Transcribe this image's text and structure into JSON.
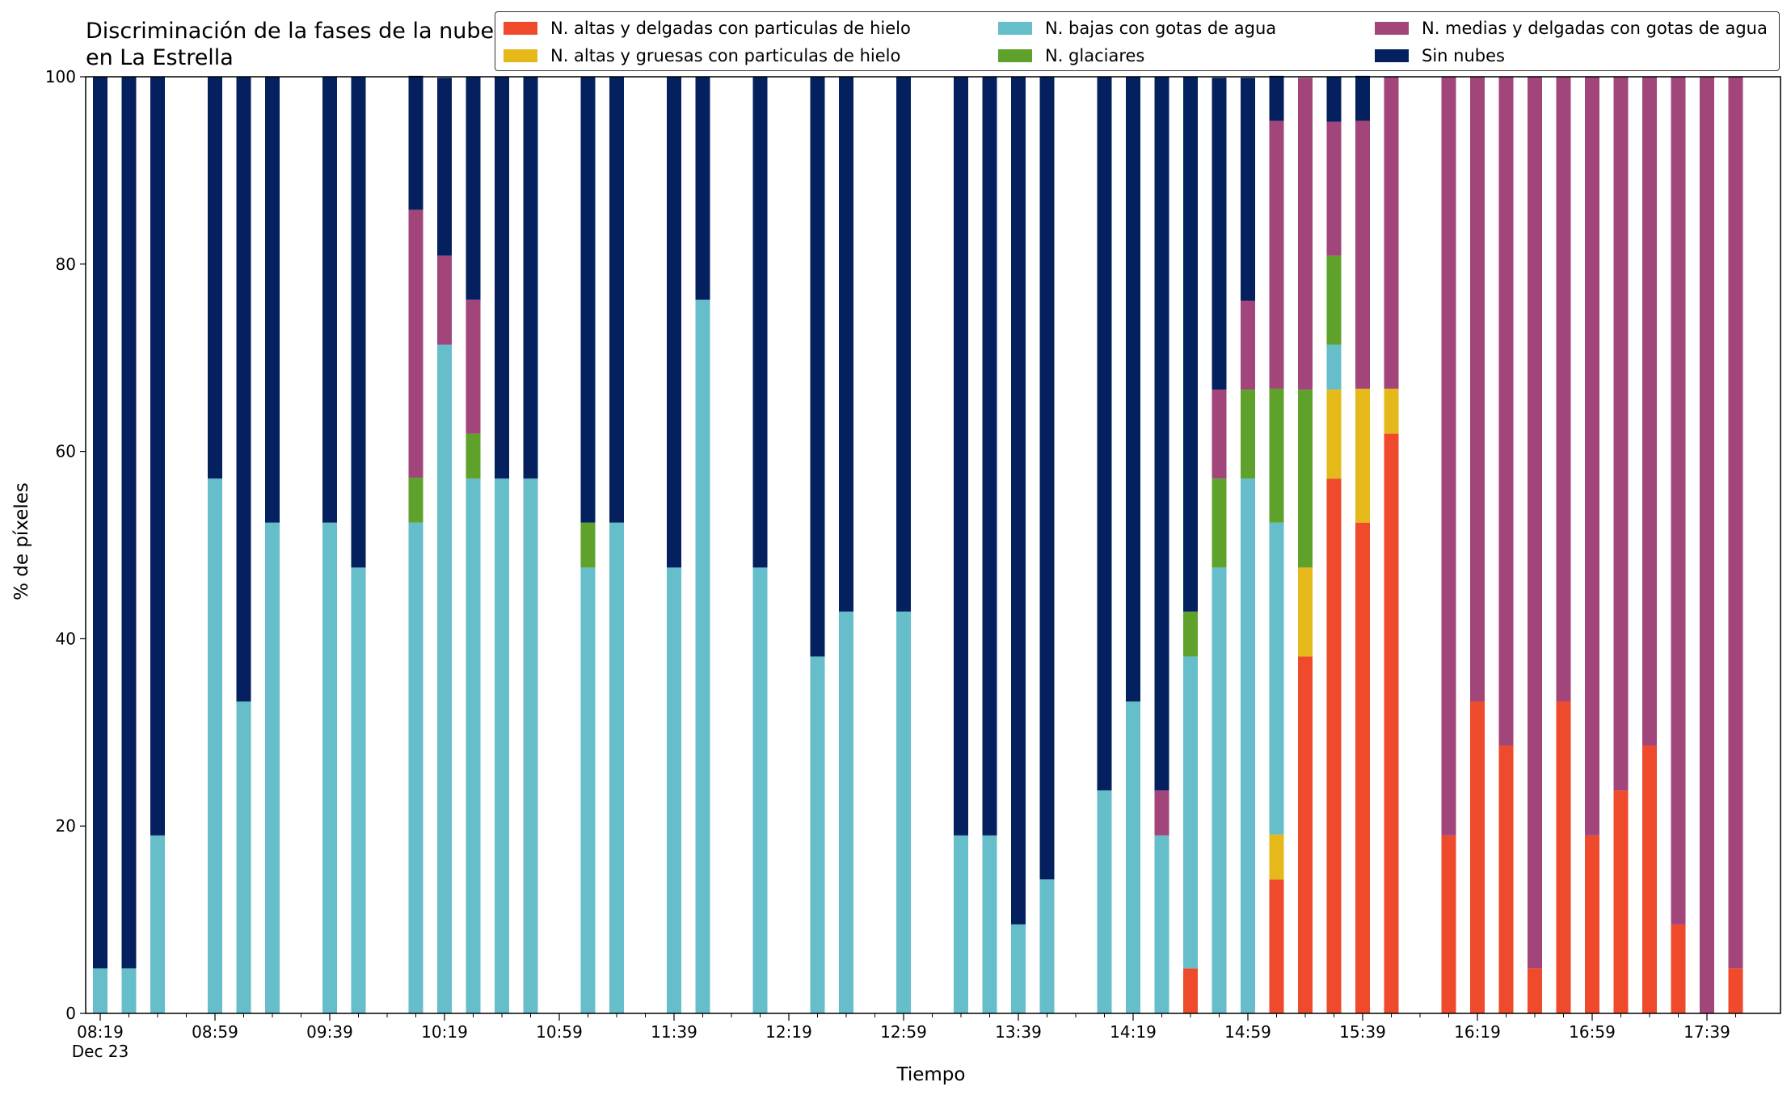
{
  "chart_data": {
    "type": "bar",
    "stacked": true,
    "title": "Discriminación de la fases de la nube en La Estrella",
    "xlabel": "Tiempo",
    "ylabel": "% de píxeles",
    "ylim": [
      0,
      100
    ],
    "yticks": [
      "0",
      "20",
      "40",
      "60",
      "80",
      "100"
    ],
    "date_label": "Dec 23",
    "xtick_labels": [
      "08:19",
      "08:59",
      "09:39",
      "10:19",
      "10:59",
      "11:39",
      "12:19",
      "12:59",
      "13:39",
      "14:19",
      "14:59",
      "15:39",
      "16:19",
      "16:59",
      "17:39"
    ],
    "grid": false,
    "legend_position": "top-right",
    "categories": [
      "08:19",
      "08:29",
      "08:39",
      "08:49",
      "08:59",
      "09:09",
      "09:19",
      "09:29",
      "09:39",
      "09:49",
      "09:59",
      "10:09",
      "10:19",
      "10:29",
      "10:39",
      "10:49",
      "10:59",
      "11:09",
      "11:19",
      "11:29",
      "11:39",
      "11:49",
      "11:59",
      "12:09",
      "12:19",
      "12:29",
      "12:39",
      "12:49",
      "12:59",
      "13:09",
      "13:19",
      "13:29",
      "13:39",
      "13:49",
      "13:59",
      "14:09",
      "14:19",
      "14:29",
      "14:39",
      "14:49",
      "14:59",
      "15:09",
      "15:19",
      "15:29",
      "15:39",
      "15:49",
      "15:59",
      "16:09",
      "16:19",
      "16:29",
      "16:39",
      "16:49",
      "16:59",
      "17:09",
      "17:19",
      "17:29",
      "17:39",
      "17:49"
    ],
    "series": [
      {
        "name": "N. altas y delgadas con particulas de hielo",
        "color": "#ee4a2b",
        "values": [
          0,
          0,
          0,
          null,
          0,
          0,
          0,
          null,
          0,
          0,
          null,
          0,
          0,
          0,
          0,
          0,
          null,
          0,
          0,
          null,
          0,
          0,
          null,
          0,
          null,
          0,
          0,
          null,
          0,
          null,
          0,
          0,
          0,
          0,
          null,
          0,
          0,
          0,
          4.8,
          0,
          0,
          14.3,
          38.1,
          57.1,
          52.4,
          61.9,
          null,
          19,
          33.3,
          28.6,
          4.8,
          33.3,
          19,
          23.8,
          28.6,
          9.5,
          0,
          4.8
        ]
      },
      {
        "name": "N. altas y gruesas con particulas de hielo",
        "color": "#e6b91a",
        "values": [
          0,
          0,
          0,
          null,
          0,
          0,
          0,
          null,
          0,
          0,
          null,
          0,
          0,
          0,
          0,
          0,
          null,
          0,
          0,
          null,
          0,
          0,
          null,
          0,
          null,
          0,
          0,
          null,
          0,
          null,
          0,
          0,
          0,
          0,
          null,
          0,
          0,
          0,
          0,
          0,
          0,
          4.8,
          9.5,
          9.5,
          14.3,
          4.8,
          null,
          0,
          0,
          0,
          0,
          0,
          0,
          0,
          0,
          0,
          0,
          0
        ]
      },
      {
        "name": "N. bajas con gotas de agua",
        "color": "#65bec9",
        "values": [
          4.8,
          4.8,
          19,
          null,
          57.1,
          33.3,
          52.4,
          null,
          52.4,
          47.6,
          null,
          52.4,
          71.4,
          57.1,
          57.1,
          57.1,
          null,
          47.6,
          52.4,
          null,
          47.6,
          76.2,
          null,
          47.6,
          null,
          38.1,
          42.9,
          null,
          42.9,
          null,
          19,
          19,
          9.5,
          14.3,
          null,
          23.8,
          33.3,
          19,
          33.3,
          47.6,
          57.1,
          33.3,
          0,
          4.8,
          0,
          0,
          null,
          0,
          0,
          0,
          0,
          0,
          0,
          0,
          0,
          0,
          0,
          0
        ]
      },
      {
        "name": "N. glaciares",
        "color": "#5ea22c",
        "values": [
          0,
          0,
          0,
          null,
          0,
          0,
          0,
          null,
          0,
          0,
          null,
          4.8,
          0,
          4.8,
          0,
          0,
          null,
          4.8,
          0,
          null,
          0,
          0,
          null,
          0,
          null,
          0,
          0,
          null,
          0,
          null,
          0,
          0,
          0,
          0,
          null,
          0,
          0,
          0,
          4.8,
          9.5,
          9.5,
          14.3,
          19,
          9.5,
          0,
          0,
          null,
          0,
          0,
          0,
          0,
          0,
          0,
          0,
          0,
          0,
          0,
          0
        ]
      },
      {
        "name": "N. medias y delgadas con gotas de agua",
        "color": "#a1457a",
        "values": [
          0,
          0,
          0,
          null,
          0,
          0,
          0,
          null,
          0,
          0,
          null,
          28.6,
          9.5,
          14.3,
          0,
          0,
          null,
          0,
          0,
          null,
          0,
          0,
          null,
          0,
          null,
          0,
          0,
          null,
          0,
          null,
          0,
          0,
          0,
          0,
          null,
          0,
          0,
          4.8,
          0,
          9.5,
          9.5,
          28.6,
          33.3,
          14.3,
          28.6,
          33.3,
          null,
          81,
          66.7,
          71.4,
          95.2,
          66.7,
          81,
          76.2,
          71.4,
          90.5,
          100,
          95.2
        ]
      },
      {
        "name": "Sin nubes",
        "color": "#04205f",
        "values": [
          95.2,
          95.2,
          81,
          null,
          42.9,
          66.7,
          47.6,
          null,
          47.6,
          52.4,
          null,
          14.3,
          19,
          23.8,
          42.9,
          42.9,
          null,
          47.6,
          47.6,
          null,
          52.4,
          23.8,
          null,
          52.4,
          null,
          61.9,
          57.1,
          null,
          57.1,
          null,
          81,
          81,
          90.5,
          85.7,
          null,
          76.2,
          66.7,
          76.2,
          57.1,
          33.3,
          23.8,
          4.8,
          0,
          4.8,
          4.8,
          0,
          null,
          0,
          0,
          0,
          0,
          0,
          0,
          0,
          0,
          0,
          0,
          0
        ]
      }
    ]
  },
  "legend_columns": [
    [
      "N. altas y delgadas con particulas de hielo",
      "N. altas y gruesas con particulas de hielo"
    ],
    [
      "N. bajas con gotas de agua",
      "N. glaciares"
    ],
    [
      "N. medias y delgadas con gotas de agua",
      "Sin nubes"
    ]
  ]
}
